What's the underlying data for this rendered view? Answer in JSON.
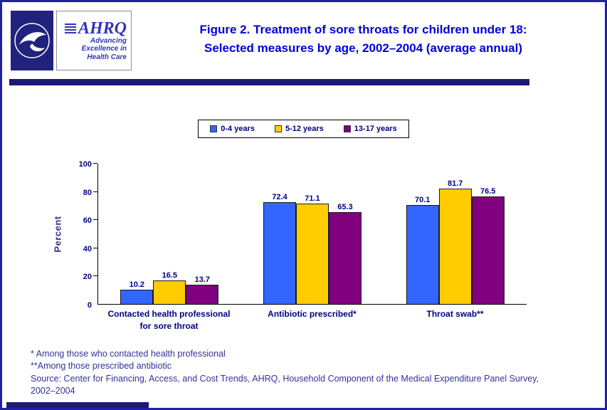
{
  "header": {
    "title_line1": "Figure 2. Treatment of sore throats for children under 18:",
    "title_line2": "Selected measures by age, 2002–2004 (average annual)",
    "logo": {
      "ahrq_text": "AHRQ",
      "tagline_line1": "Advancing",
      "tagline_line2": "Excellence in",
      "tagline_line3": "Health Care"
    }
  },
  "chart_data": {
    "type": "bar",
    "title": "Figure 2. Treatment of sore throats for children under 18: Selected measures by age, 2002–2004 (average annual)",
    "xlabel": "",
    "ylabel": "Percent",
    "ylim": [
      0,
      100
    ],
    "yticks": [
      0,
      20,
      40,
      60,
      80,
      100
    ],
    "grid": false,
    "legend_position": "top",
    "categories": [
      "Contacted health professional\nfor sore throat",
      "Antibiotic prescribed*",
      "Throat swab**"
    ],
    "series": [
      {
        "name": "0-4 years",
        "color": "#3366FF",
        "values": [
          10.2,
          72.4,
          70.1
        ]
      },
      {
        "name": "5-12 years",
        "color": "#FFCC00",
        "values": [
          16.5,
          71.1,
          81.7
        ]
      },
      {
        "name": "13-17 years",
        "color": "#800080",
        "values": [
          13.7,
          65.3,
          76.5
        ]
      }
    ]
  },
  "footnotes": [
    "* Among those who contacted health professional",
    "**Among those prescribed antibiotic",
    "Source: Center for Financing, Access, and Cost Trends, AHRQ, Household Component of the Medical Expenditure Panel Survey, 2002–2004"
  ]
}
